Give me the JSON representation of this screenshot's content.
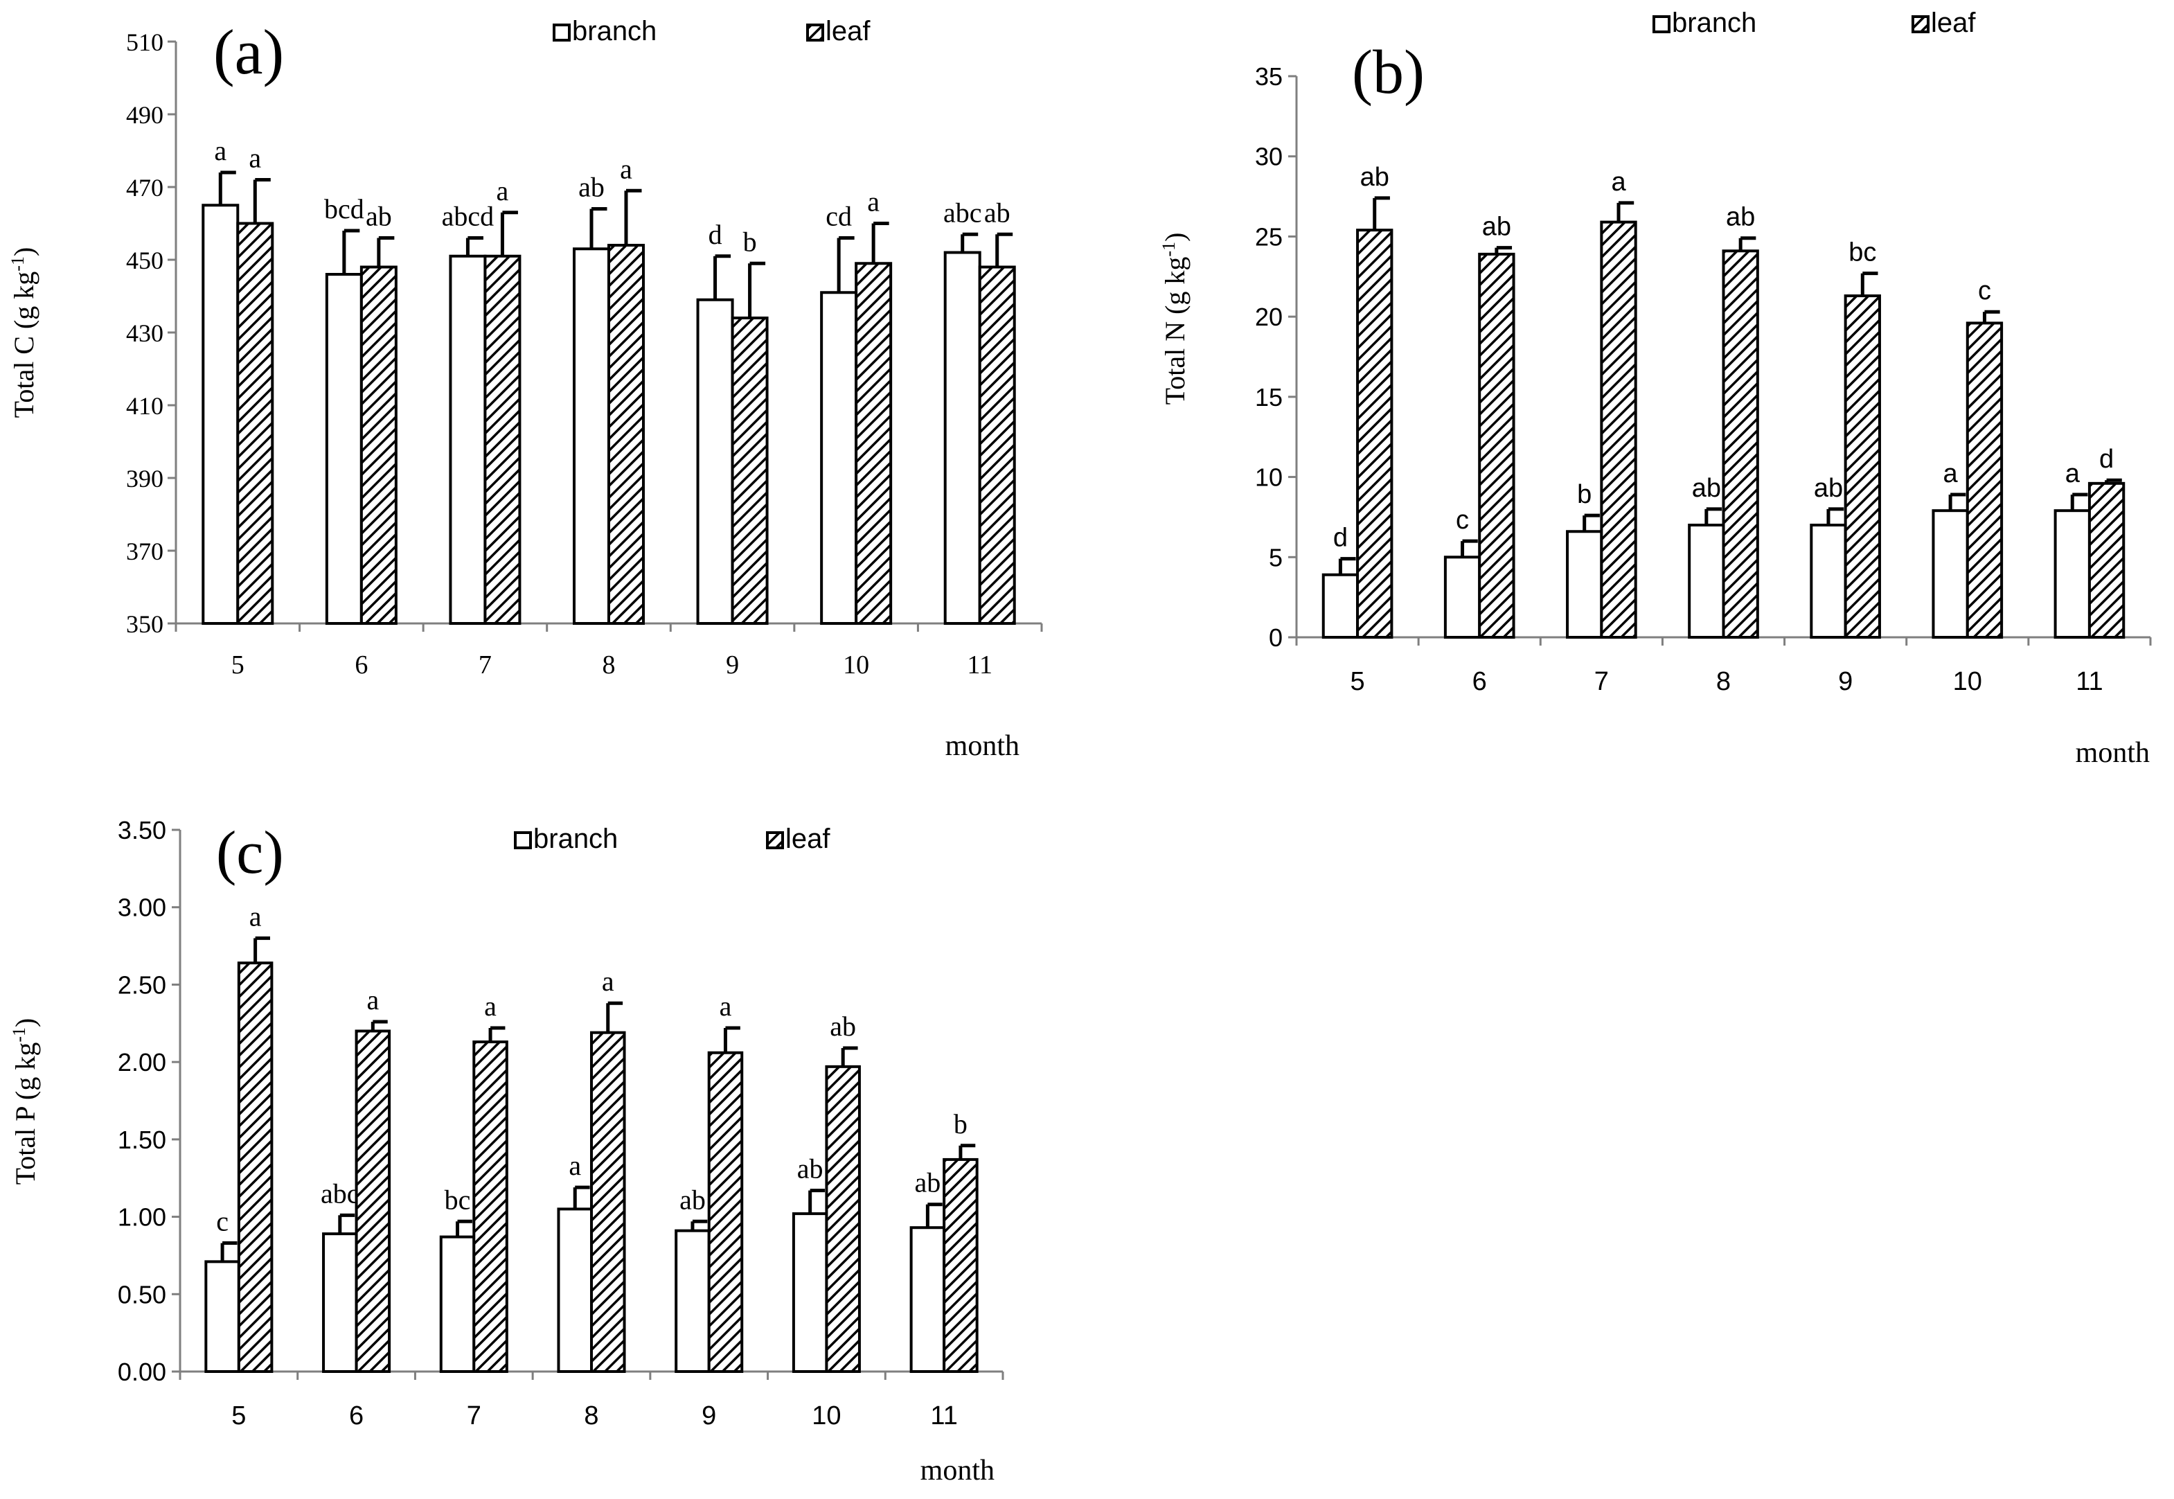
{
  "patterns": {
    "branch_fill": "#ffffff",
    "leaf_stroke": "#000000",
    "axis_color": "#7f7f7f",
    "bar_stroke": "#000000"
  },
  "chart_data": [
    {
      "type": "bar",
      "panel_label": "(a)",
      "categories": [
        "5",
        "6",
        "7",
        "8",
        "9",
        "10",
        "11"
      ],
      "xlabel": "month",
      "ylabel_main": "Total  C  (g kg",
      "ylabel_sup": "-1",
      "ylabel_tail": ")",
      "ylim": [
        350,
        510
      ],
      "yticks": [
        350,
        370,
        390,
        410,
        430,
        450,
        470,
        490,
        510
      ],
      "ytick_decimals": 0,
      "legend": {
        "position": "top-center",
        "labels": [
          "branch",
          "leaf"
        ]
      },
      "series": [
        {
          "name": "branch",
          "values": [
            465,
            446,
            451,
            453,
            439,
            441,
            452
          ],
          "errors": [
            9,
            12,
            5,
            11,
            12,
            15,
            5
          ],
          "letters": [
            "a",
            "bcd",
            "abcd",
            "ab",
            "d",
            "cd",
            "abc"
          ]
        },
        {
          "name": "leaf",
          "values": [
            460,
            448,
            451,
            454,
            434,
            449,
            448
          ],
          "errors": [
            12,
            8,
            12,
            15,
            15,
            11,
            9
          ],
          "letters": [
            "a",
            "ab",
            "a",
            "a",
            "b",
            "a",
            "ab"
          ]
        }
      ]
    },
    {
      "type": "bar",
      "panel_label": "(b)",
      "categories": [
        "5",
        "6",
        "7",
        "8",
        "9",
        "10",
        "11"
      ],
      "xlabel": "month",
      "ylabel_main": "Total  N  (g kg",
      "ylabel_sup": "-1",
      "ylabel_tail": ")",
      "ylim": [
        0,
        35
      ],
      "yticks": [
        0,
        5,
        10,
        15,
        20,
        25,
        30,
        35
      ],
      "ytick_decimals": 0,
      "legend": {
        "position": "top-right",
        "labels": [
          "branch",
          "leaf"
        ]
      },
      "series": [
        {
          "name": "branch",
          "values": [
            3.9,
            5.0,
            6.6,
            7.0,
            7.0,
            7.9,
            7.9
          ],
          "errors": [
            1.0,
            1.0,
            1.0,
            1.0,
            1.0,
            1.0,
            1.0
          ],
          "letters": [
            "d",
            "c",
            "b",
            "ab",
            "ab",
            "a",
            "a"
          ]
        },
        {
          "name": "leaf",
          "values": [
            25.4,
            23.9,
            25.9,
            24.1,
            21.3,
            19.6,
            9.6
          ],
          "errors": [
            2.0,
            0.4,
            1.2,
            0.8,
            1.4,
            0.7,
            0.2
          ],
          "letters": [
            "ab",
            "ab",
            "a",
            "ab",
            "bc",
            "c",
            "d"
          ]
        }
      ]
    },
    {
      "type": "bar",
      "panel_label": "(c)",
      "categories": [
        "5",
        "6",
        "7",
        "8",
        "9",
        "10",
        "11"
      ],
      "xlabel": "month",
      "ylabel_main": "Total P (g kg",
      "ylabel_sup": "-1",
      "ylabel_tail": ")",
      "ylim": [
        0,
        3.5
      ],
      "yticks": [
        0,
        0.5,
        1.0,
        1.5,
        2.0,
        2.5,
        3.0,
        3.5
      ],
      "ytick_decimals": 2,
      "legend": {
        "position": "top-center",
        "labels": [
          "branch",
          "leaf"
        ]
      },
      "series": [
        {
          "name": "branch",
          "values": [
            0.71,
            0.89,
            0.87,
            1.05,
            0.91,
            1.02,
            0.93
          ],
          "errors": [
            0.12,
            0.12,
            0.1,
            0.14,
            0.06,
            0.15,
            0.15
          ],
          "letters": [
            "c",
            "abc",
            "bc",
            "a",
            "ab",
            "ab",
            "ab"
          ]
        },
        {
          "name": "leaf",
          "values": [
            2.64,
            2.2,
            2.13,
            2.19,
            2.06,
            1.97,
            1.37
          ],
          "errors": [
            0.16,
            0.06,
            0.09,
            0.19,
            0.16,
            0.12,
            0.09
          ],
          "letters": [
            "a",
            "a",
            "a",
            "a",
            "a",
            "ab",
            "b"
          ]
        }
      ]
    }
  ]
}
